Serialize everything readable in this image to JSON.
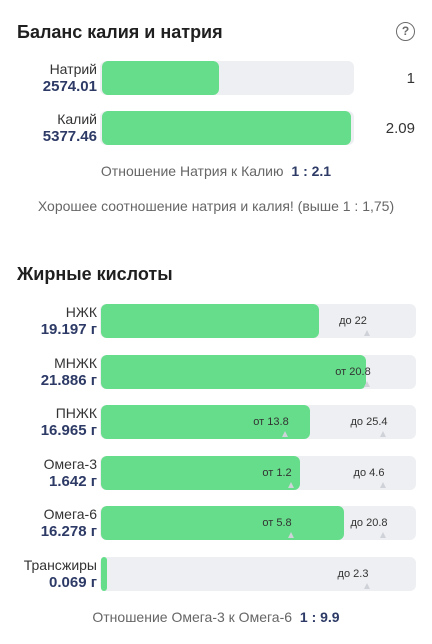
{
  "balance": {
    "title": "Баланс калия и натрия",
    "help_icon": "question-circle-icon",
    "rows": [
      {
        "name": "Натрий",
        "value": "2574.01",
        "ratio": "1",
        "level_fraction": 0.47
      },
      {
        "name": "Калий",
        "value": "5377.46",
        "ratio": "2.09",
        "level_fraction": 0.99
      }
    ],
    "ratio_label": "Отношение Натрия к Калию",
    "ratio_value": "1 : 2.1",
    "note": "Хорошее соотношение натрия и калия! (выше 1 : 1,75)"
  },
  "fatty_acids": {
    "title": "Жирные кислоты",
    "rows": [
      {
        "name": "НЖК",
        "value": "19.197 г",
        "level_fraction": 0.69,
        "markers": [
          {
            "text": "до 22",
            "at_fraction": 0.8
          }
        ]
      },
      {
        "name": "МНЖК",
        "value": "21.886 г",
        "level_fraction": 0.84,
        "markers": [
          {
            "text": "от 20.8",
            "at_fraction": 0.8
          }
        ]
      },
      {
        "name": "ПНЖК",
        "value": "16.965 г",
        "level_fraction": 0.66,
        "markers": [
          {
            "text": "от 13.8",
            "at_fraction": 0.54
          },
          {
            "text": "до 25.4",
            "at_fraction": 0.85
          }
        ]
      },
      {
        "name": "Омега-3",
        "value": "1.642 г",
        "level_fraction": 0.63,
        "markers": [
          {
            "text": "от 1.2",
            "at_fraction": 0.56
          },
          {
            "text": "до 4.6",
            "at_fraction": 0.85
          }
        ]
      },
      {
        "name": "Омега-6",
        "value": "16.278 г",
        "level_fraction": 0.77,
        "markers": [
          {
            "text": "от 5.8",
            "at_fraction": 0.56
          },
          {
            "text": "до 20.8",
            "at_fraction": 0.85
          }
        ]
      },
      {
        "name": "Трансжиры",
        "value": "0.069 г",
        "level_fraction": 0.02,
        "markers": [
          {
            "text": "до 2.3",
            "at_fraction": 0.8
          }
        ]
      }
    ],
    "ratio_label": "Отношение Омега-3 к Омега-6",
    "ratio_value": "1 : 9.9"
  }
}
